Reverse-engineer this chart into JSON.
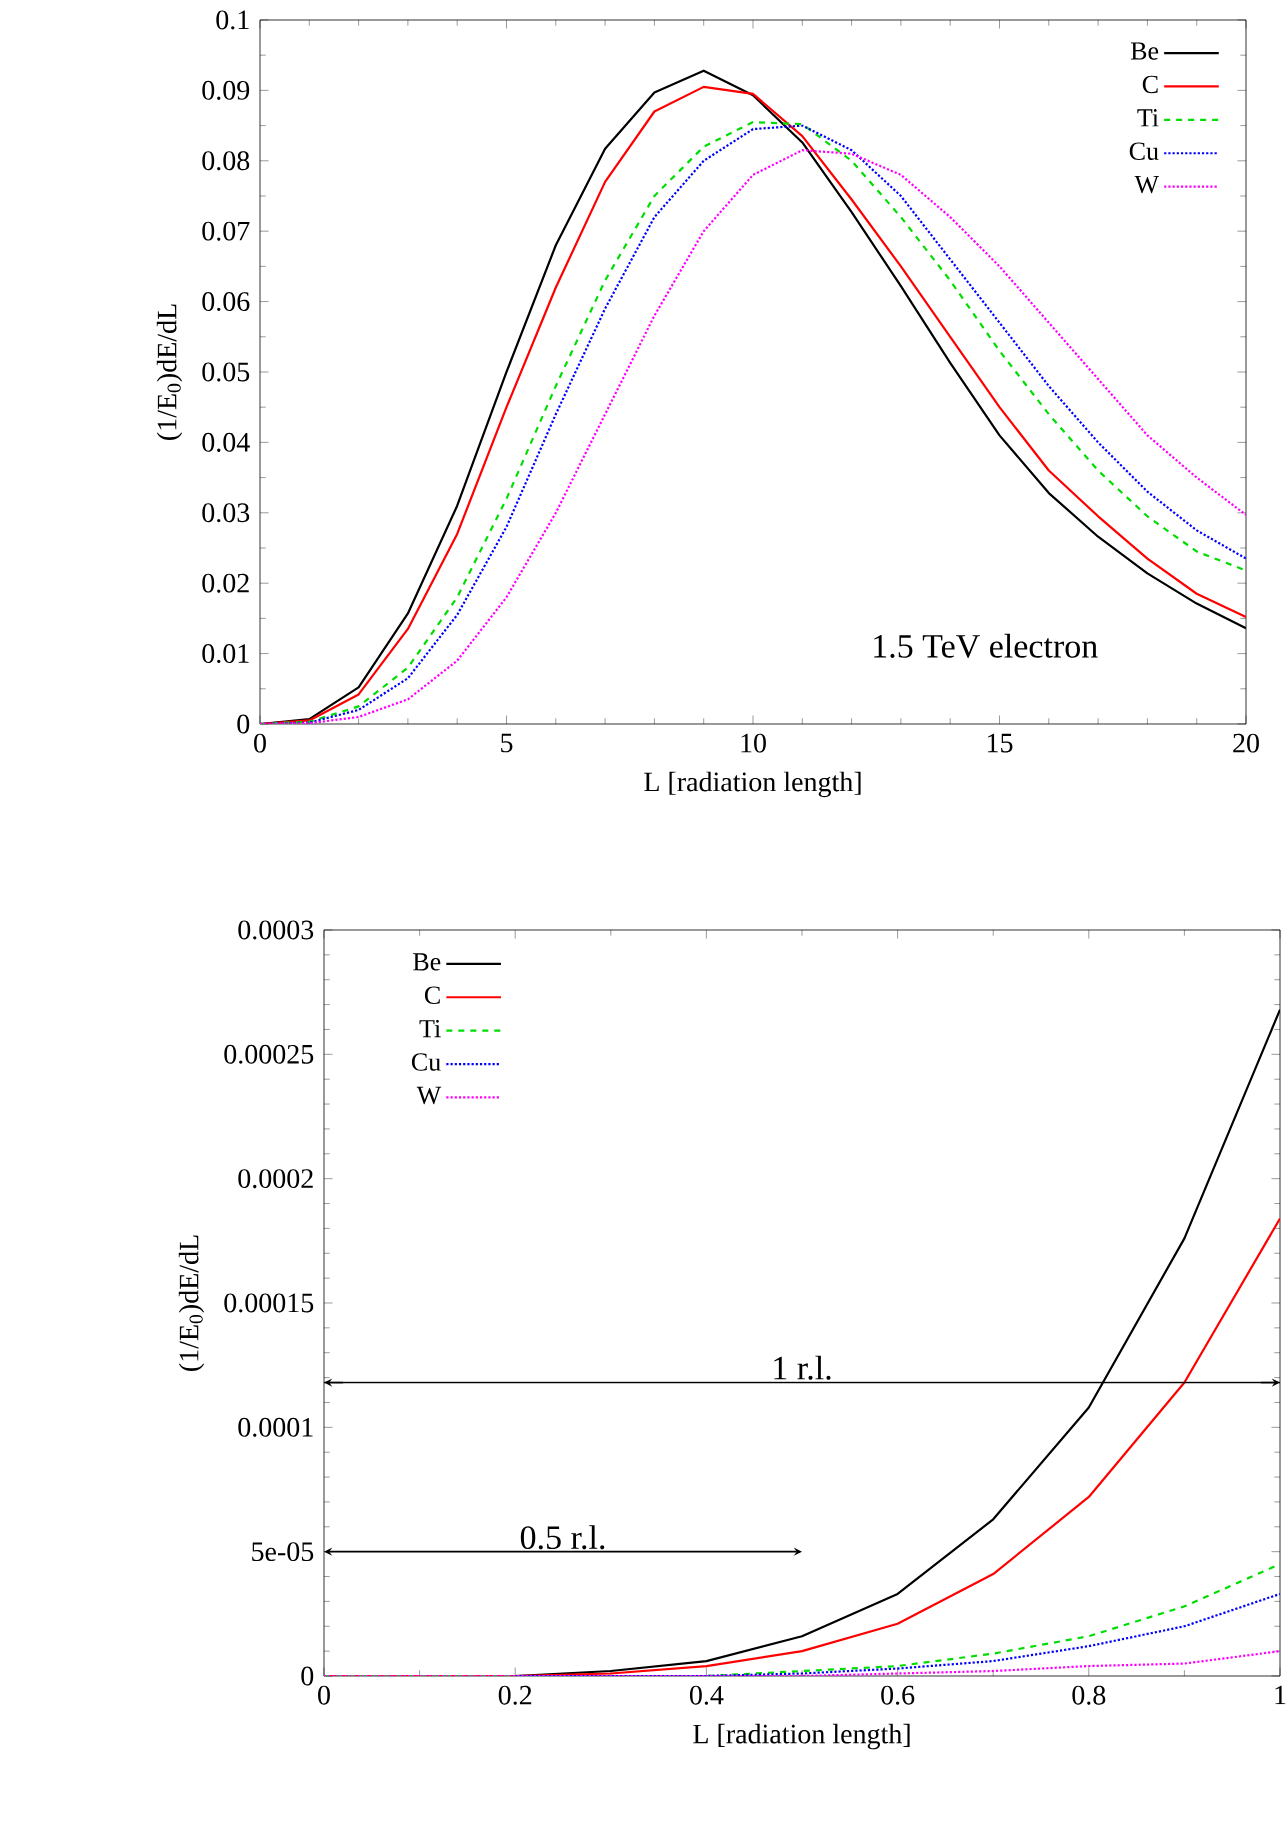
{
  "chart_data": [
    {
      "type": "line",
      "xlabel": "L [radiation length]",
      "ylabel": "(1/E$_{0}$)dE/dL",
      "xlim": [
        0,
        20
      ],
      "ylim": [
        0,
        0.1
      ],
      "xticks": [
        0,
        5,
        10,
        15,
        20
      ],
      "yticks": [
        0,
        0.01,
        0.02,
        0.03,
        0.04,
        0.05,
        0.06,
        0.07,
        0.08,
        0.09,
        0.1
      ],
      "legend": "top right",
      "annotations": [
        "1.5 TeV electron"
      ],
      "x": [
        0,
        1,
        2,
        3,
        4,
        5,
        6,
        7,
        8,
        9,
        10,
        11,
        12,
        13,
        14,
        15,
        16,
        17,
        18,
        19,
        20
      ],
      "series": [
        {
          "name": "Be",
          "color": "#000000",
          "line_style": "solid",
          "values": [
            0,
            0.0007,
            0.0052,
            0.0157,
            0.031,
            0.05,
            0.068,
            0.0817,
            0.0897,
            0.0928,
            0.0893,
            0.0826,
            0.0727,
            0.0622,
            0.0513,
            0.041,
            0.0328,
            0.0266,
            0.0214,
            0.0171,
            0.0136
          ]
        },
        {
          "name": "C",
          "color": "#ff0000",
          "line_style": "solid",
          "values": [
            0,
            0.0005,
            0.0042,
            0.0135,
            0.027,
            0.045,
            0.062,
            0.077,
            0.087,
            0.0905,
            0.0895,
            0.0835,
            0.0745,
            0.065,
            0.055,
            0.045,
            0.036,
            0.0295,
            0.0235,
            0.0185,
            0.0152
          ]
        },
        {
          "name": "Ti",
          "color": "#00dd00",
          "line_style": "dashed",
          "values": [
            0,
            0.0003,
            0.0025,
            0.008,
            0.018,
            0.032,
            0.048,
            0.063,
            0.075,
            0.082,
            0.0855,
            0.0852,
            0.08,
            0.072,
            0.063,
            0.053,
            0.044,
            0.036,
            0.0295,
            0.0245,
            0.0218
          ]
        },
        {
          "name": "Cu",
          "color": "#0000ff",
          "line_style": "dotted",
          "values": [
            0,
            0.0002,
            0.002,
            0.0065,
            0.0155,
            0.028,
            0.044,
            0.059,
            0.072,
            0.08,
            0.0845,
            0.085,
            0.0815,
            0.075,
            0.066,
            0.057,
            0.048,
            0.04,
            0.033,
            0.0275,
            0.0235
          ]
        },
        {
          "name": "W",
          "color": "#ff00ff",
          "line_style": "dotted",
          "values": [
            0,
            0.0001,
            0.001,
            0.0035,
            0.009,
            0.018,
            0.03,
            0.044,
            0.058,
            0.07,
            0.078,
            0.0815,
            0.081,
            0.078,
            0.072,
            0.065,
            0.057,
            0.049,
            0.041,
            0.035,
            0.0297
          ]
        }
      ]
    },
    {
      "type": "line",
      "xlabel": "L [radiation length]",
      "ylabel": "(1/E$_{0}$)dE/dL",
      "xlim": [
        0,
        1
      ],
      "ylim": [
        0,
        0.0003
      ],
      "xticks": [
        0,
        0.2,
        0.4,
        0.6,
        0.8,
        1
      ],
      "yticks": [
        0,
        {
          "value": 5e-05,
          "label": "5e-05"
        },
        0.0001,
        0.00015,
        0.0002,
        0.00025,
        0.0003
      ],
      "legend": "top left",
      "ref_lines": [
        {
          "axis": "y",
          "value": 0.000118,
          "label": "1 r.l."
        }
      ],
      "annotations": [
        "0.5 r.l."
      ],
      "x": [
        0,
        0.1,
        0.2,
        0.3,
        0.4,
        0.5,
        0.6,
        0.7,
        0.8,
        0.9,
        1
      ],
      "series": [
        {
          "name": "Be",
          "color": "#000000",
          "line_style": "solid",
          "values": [
            0,
            0,
            0,
            2e-06,
            6e-06,
            1.6e-05,
            3.3e-05,
            6.3e-05,
            0.000108,
            0.000176,
            0.000268
          ]
        },
        {
          "name": "C",
          "color": "#ff0000",
          "line_style": "solid",
          "values": [
            0,
            0,
            0,
            1e-06,
            4e-06,
            1e-05,
            2.1e-05,
            4.1e-05,
            7.2e-05,
            0.000118,
            0.000184
          ]
        },
        {
          "name": "Ti",
          "color": "#00dd00",
          "line_style": "dashed",
          "values": [
            0,
            0,
            0,
            0,
            0,
            2e-06,
            4e-06,
            9e-06,
            1.6e-05,
            2.8e-05,
            4.5e-05
          ]
        },
        {
          "name": "Cu",
          "color": "#0000ff",
          "line_style": "dotted",
          "values": [
            null,
            null,
            0,
            0,
            0,
            1e-06,
            3e-06,
            6e-06,
            1.2e-05,
            2e-05,
            3.3e-05
          ]
        },
        {
          "name": "W",
          "color": "#ff00ff",
          "line_style": "dotted",
          "values": [
            0,
            0,
            0,
            0,
            0,
            0,
            1e-06,
            2e-06,
            4e-06,
            5e-06,
            1e-05
          ]
        }
      ]
    }
  ]
}
